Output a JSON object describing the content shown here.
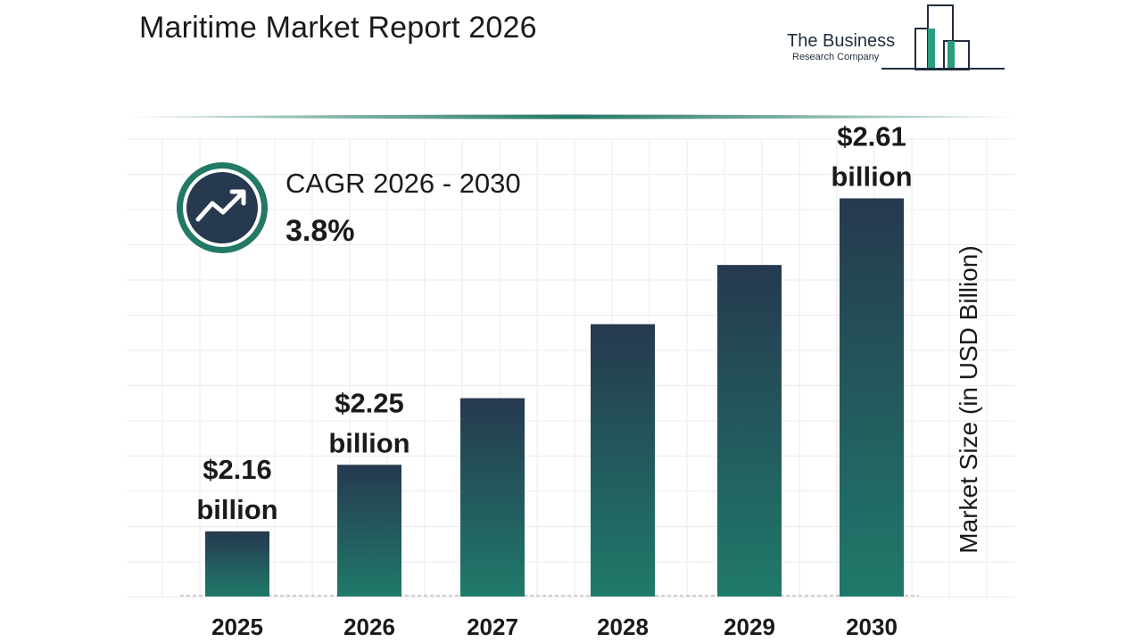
{
  "header": {
    "title": "Maritime Market Report 2026"
  },
  "logo": {
    "name": "The Business",
    "sub": "Research Company"
  },
  "cagr": {
    "label": "CAGR 2026 - 2030",
    "value": "3.8%",
    "icon": "trend-up-icon"
  },
  "colors": {
    "bar_top": "#26394f",
    "bar_bottom": "#1f7a6a",
    "accent": "#247866",
    "badge_ring": "#247866",
    "badge_fill": "#26394f"
  },
  "chart_data": {
    "type": "bar",
    "categories": [
      "2025",
      "2026",
      "2027",
      "2028",
      "2029",
      "2030"
    ],
    "values": [
      2.16,
      2.25,
      2.34,
      2.44,
      2.52,
      2.61
    ],
    "labels": [
      {
        "line1": "$2.16",
        "line2": "billion"
      },
      {
        "line1": "$2.25",
        "line2": "billion"
      },
      null,
      null,
      null,
      {
        "line1": "$2.61",
        "line2": "billion"
      }
    ],
    "ylabel": "Market Size (in USD Billion)",
    "grid": true
  }
}
